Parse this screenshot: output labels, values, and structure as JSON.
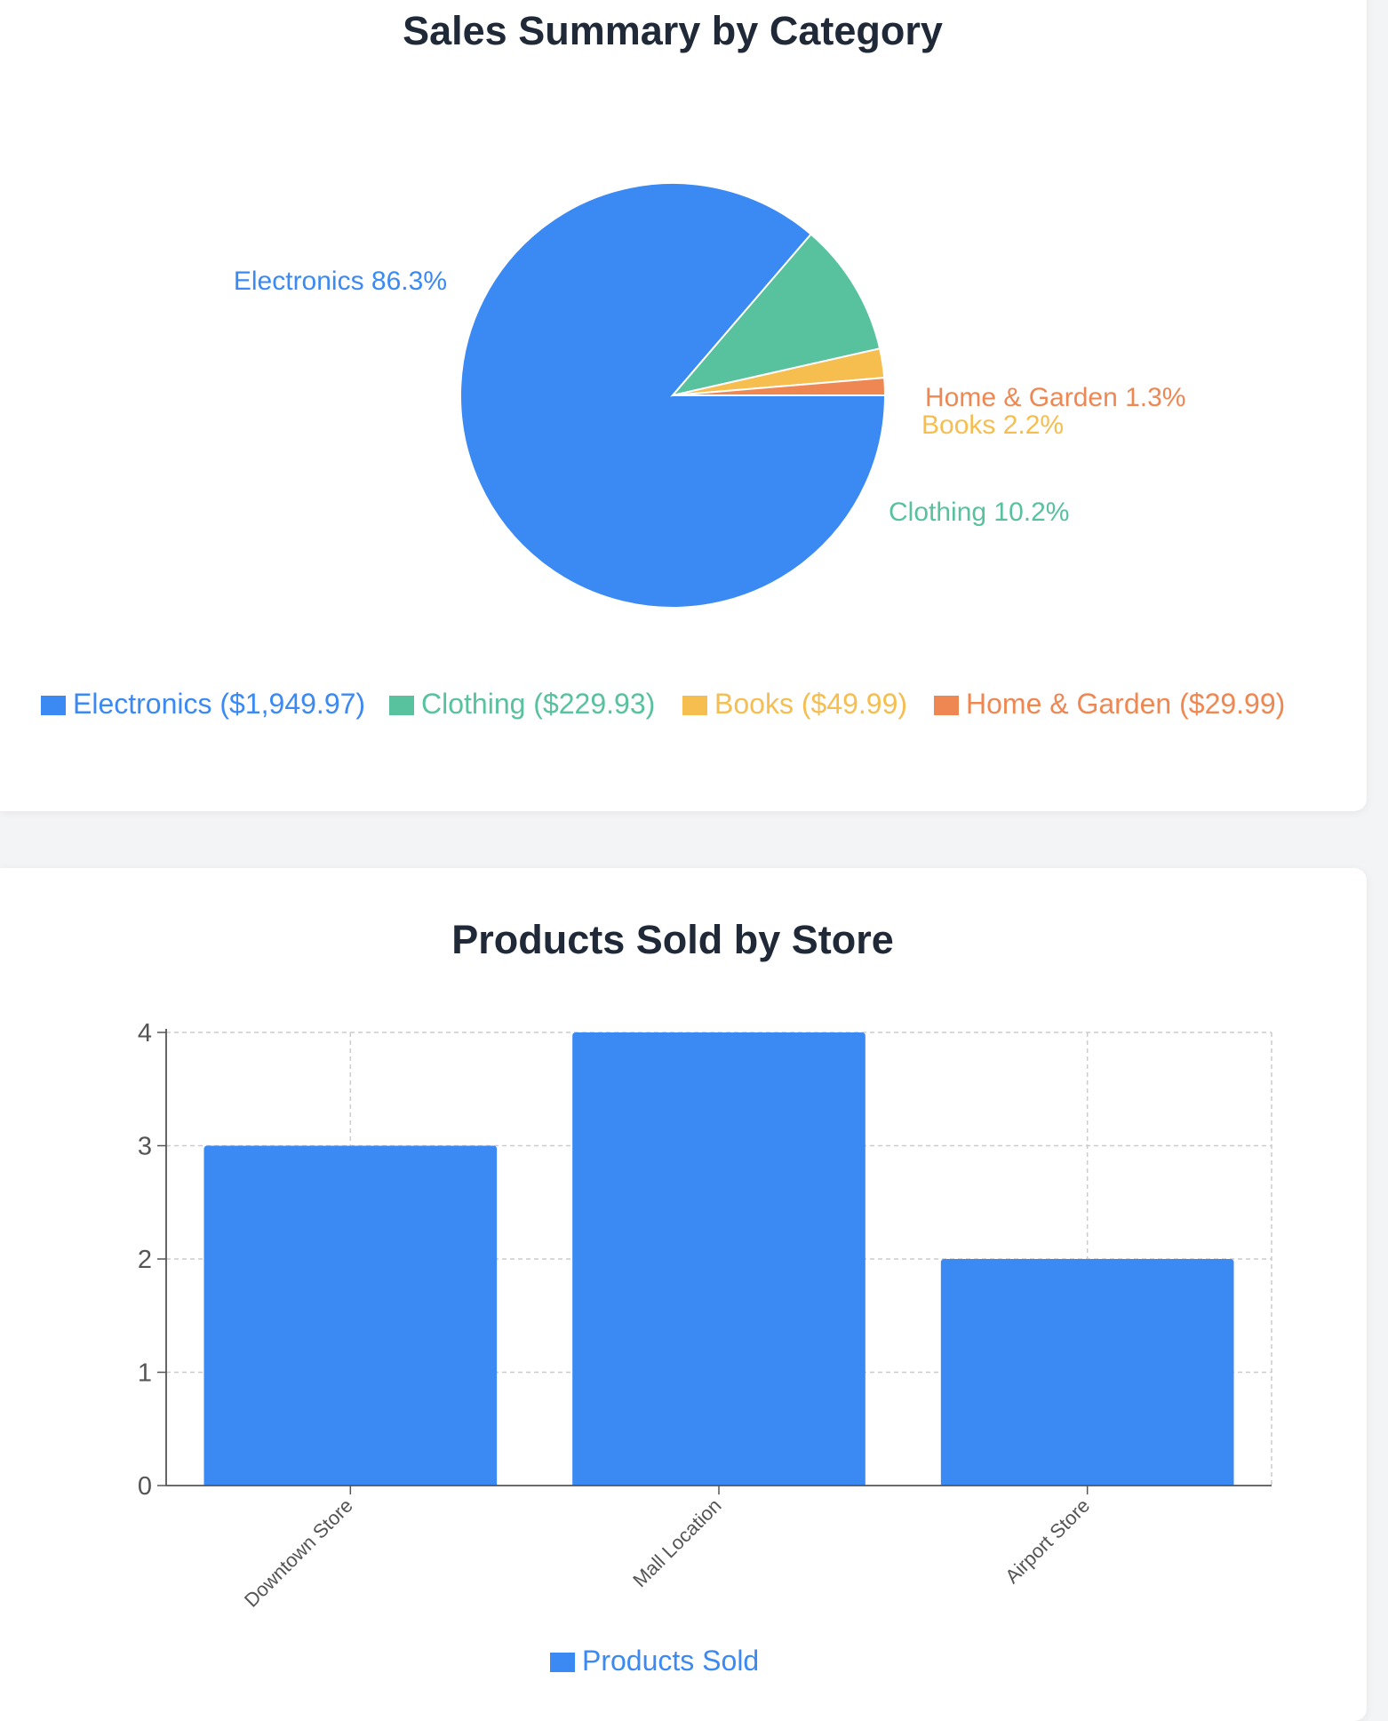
{
  "colors": {
    "electronics": "#3b89f3",
    "clothing": "#58c19d",
    "books": "#f6bd4f",
    "home_garden": "#ef8752",
    "products_sold": "#3b89f3"
  },
  "chart_data": [
    {
      "type": "pie",
      "title": "Sales Summary by Category",
      "slices": [
        {
          "name": "Electronics",
          "value": 1949.97,
          "percent": "86.3%",
          "label": "Electronics 86.3%",
          "legend": "Electronics ($1,949.97)"
        },
        {
          "name": "Clothing",
          "value": 229.93,
          "percent": "10.2%",
          "label": "Clothing 10.2%",
          "legend": "Clothing ($229.93)"
        },
        {
          "name": "Books",
          "value": 49.99,
          "percent": "2.2%",
          "label": "Books 2.2%",
          "legend": "Books ($49.99)"
        },
        {
          "name": "Home & Garden",
          "value": 29.99,
          "percent": "1.3%",
          "label": "Home & Garden 1.3%",
          "legend": "Home & Garden ($29.99)"
        }
      ],
      "legend_placement": "bottom"
    },
    {
      "type": "bar",
      "title": "Products Sold by Store",
      "categories": [
        "Downtown Store",
        "Mall Location",
        "Airport Store"
      ],
      "series": [
        {
          "name": "Products Sold",
          "values": [
            3,
            4,
            2
          ]
        }
      ],
      "ylim": [
        0,
        4
      ],
      "yticks": [
        "0",
        "1",
        "2",
        "3",
        "4"
      ],
      "grid": true,
      "legend_placement": "bottom"
    }
  ]
}
